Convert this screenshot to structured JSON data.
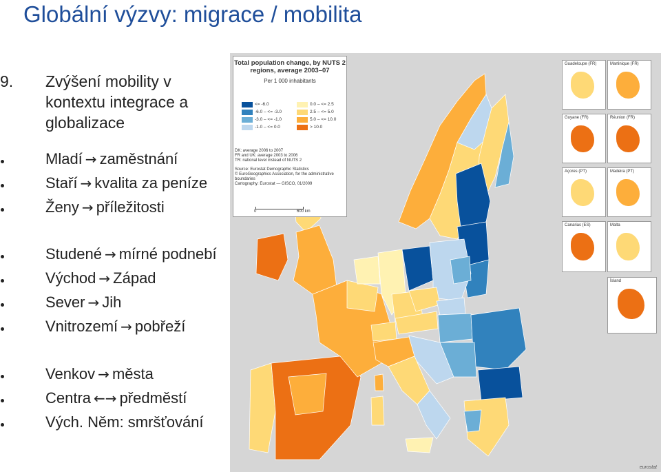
{
  "slide": {
    "title": "Globální výzvy: migrace / mobilita",
    "heading_number": "9.",
    "heading_text": "Zvýšení mobility v kontextu integrace a globalizace"
  },
  "bullets": [
    {
      "left": "Mladí",
      "arrow": "→",
      "right": "zaměstnání"
    },
    {
      "left": "Staří",
      "arrow": "→",
      "right": "kvalita za peníze"
    },
    {
      "left": "Ženy",
      "arrow": "→",
      "right": "příležitosti"
    },
    {
      "left": "Studené",
      "arrow": "→",
      "right": "mírné podnebí"
    },
    {
      "left": "Východ",
      "arrow": "→",
      "right": "Západ"
    },
    {
      "left": "Sever",
      "arrow": "→",
      "right": "Jih"
    },
    {
      "left": "Vnitrozemí",
      "arrow": "→",
      "right": "pobřeží"
    },
    {
      "left": "Venkov",
      "arrow": "→",
      "right": "města"
    },
    {
      "left": "Centra",
      "arrow": "←→",
      "right": "předměstí"
    },
    {
      "left": "Vých. Něm: smršťování",
      "arrow": "",
      "right": ""
    }
  ],
  "map": {
    "title": "Total population change, by NUTS 2 regions, average 2003–07",
    "unit": "Per 1 000 inhabitants",
    "legend": [
      {
        "label": "<= -6.0",
        "color": "#08519c"
      },
      {
        "label": "-6.0 – <= -3.0",
        "color": "#3182bd"
      },
      {
        "label": "-3.0 – <= -1.0",
        "color": "#6baed6"
      },
      {
        "label": "-1.0 – <= 0.0",
        "color": "#bdd7ee"
      },
      {
        "label": "0.0 – <= 2.5",
        "color": "#fff2b2"
      },
      {
        "label": "2.5 – <= 5.0",
        "color": "#fed976"
      },
      {
        "label": "5.0 – <= 10.0",
        "color": "#fdae3b"
      },
      {
        "label": "> 10.0",
        "color": "#ec7014"
      }
    ],
    "notes": [
      "DK: average 2006 to 2007",
      "FR and UK: average 2003 to 2006",
      "TR: national level instead of NUTS 2",
      "Source: Eurostat Demographic Statistics",
      "© EuroGeographics Association, for the administrative boundaries",
      "Cartography: Eurostat — GISCO, 01/2009"
    ],
    "scale_left": "0",
    "scale_right": "600 km",
    "insets": [
      "Guadeloupe (FR)",
      "Martinique (FR)",
      "Guyane (FR)",
      "Réunion (FR)",
      "Açores (PT)",
      "Madeira (PT)",
      "Canarias (ES)",
      "Malta",
      "Ísland"
    ],
    "credit": "eurostat"
  }
}
